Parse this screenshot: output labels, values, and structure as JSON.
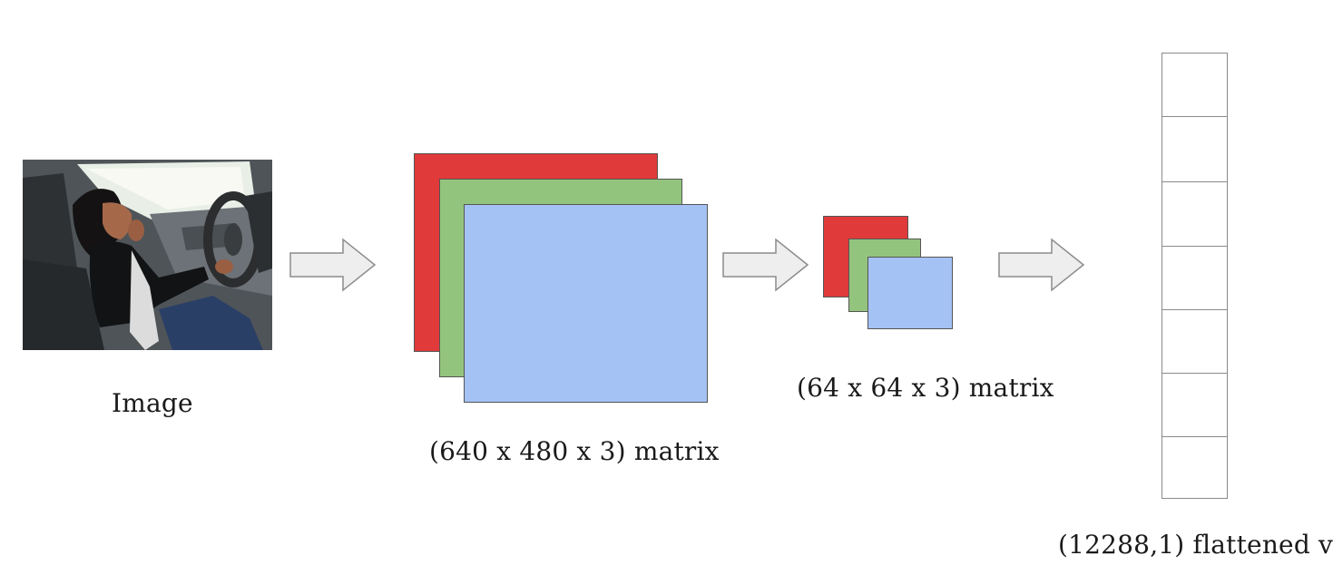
{
  "labels": {
    "image": "Image",
    "big_matrix": "(640 x 480 x 3) matrix",
    "small_matrix": "(64 x 64 x 3) matrix",
    "vector": "(12288,1) flattened v"
  },
  "colors": {
    "red_channel": "#e03a3a",
    "green_channel": "#93c47d",
    "blue_channel": "#a4c2f4",
    "arrow_fill": "#eeeeee",
    "arrow_stroke": "#8c8c8c"
  },
  "photo": {
    "subject": "woman driving a car while talking on phone"
  },
  "icons": [
    "arrow-right-icon",
    "arrow-right-icon",
    "arrow-right-icon"
  ]
}
